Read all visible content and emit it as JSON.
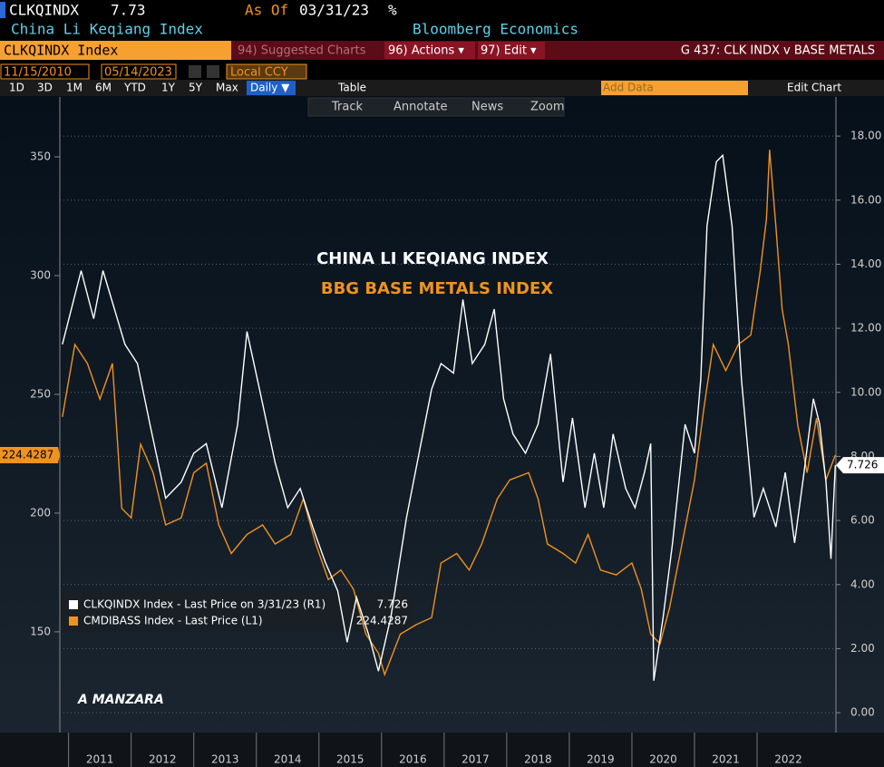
{
  "ui": {
    "ticker": "CLKQINDX",
    "last": "7.73",
    "as_of_label": "As Of",
    "as_of_date": "03/31/23",
    "pct": "%",
    "security_name": "China Li Keqiang Index",
    "source": "Bloomberg Economics",
    "security_box": "CLKQINDX Index",
    "menu_suggested": "94) Suggested Charts",
    "menu_actions": "96) Actions ▾",
    "menu_edit": "97) Edit ▾",
    "chart_code": "G 437: CLK INDX v BASE METALS",
    "start_date": "11/15/2010",
    "end_date": "05/14/2023",
    "currency": "Local CCY",
    "periods": [
      "1D",
      "3D",
      "1M",
      "6M",
      "YTD",
      "1Y",
      "5Y",
      "Max"
    ],
    "frequency": "Daily ▼",
    "table": "Table",
    "add_data": "Add Data",
    "edit_chart": "Edit Chart",
    "tools": [
      "Track",
      "Annotate",
      "News",
      "Zoom"
    ]
  },
  "chart_data": {
    "type": "line",
    "title": "CHINA LI KEQIANG INDEX",
    "subtitle": "BBG BASE METALS INDEX",
    "annotation": "A MANZARA",
    "xlim": [
      2010.86,
      2023.26
    ],
    "xticks": [
      2011,
      2012,
      2013,
      2014,
      2015,
      2016,
      2017,
      2018,
      2019,
      2020,
      2021,
      2022
    ],
    "ylim": [
      107.6,
      375.2
    ],
    "yticks": [
      150,
      200,
      250,
      300,
      350
    ],
    "y2lim": [
      -0.62,
      19.22
    ],
    "y2ticks": [
      {
        "value": 0,
        "label": "0.00"
      },
      {
        "value": 2,
        "label": "2.00"
      },
      {
        "value": 4,
        "label": "4.00"
      },
      {
        "value": 6,
        "label": "6.00"
      },
      {
        "value": 8,
        "label": "8.00"
      },
      {
        "value": 10,
        "label": "10.00"
      },
      {
        "value": 12,
        "label": "12.00"
      },
      {
        "value": 14,
        "label": "14.00"
      },
      {
        "value": 16,
        "label": "16.00"
      },
      {
        "value": 18,
        "label": "18.00"
      }
    ],
    "grid": true,
    "series": [
      {
        "name": "CLKQINDX Index - Last Price on 3/31/23 (R1)",
        "color": "#ffffff",
        "axis": "y2",
        "x": [
          2010.9,
          2011.2,
          2011.4,
          2011.55,
          2011.9,
          2012.1,
          2012.3,
          2012.55,
          2012.8,
          2013.0,
          2013.2,
          2013.45,
          2013.7,
          2013.85,
          2014.05,
          2014.3,
          2014.5,
          2014.7,
          2014.9,
          2015.1,
          2015.3,
          2015.45,
          2015.6,
          2015.8,
          2015.95,
          2016.15,
          2016.4,
          2016.6,
          2016.8,
          2016.95,
          2017.15,
          2017.3,
          2017.45,
          2017.65,
          2017.8,
          2017.95,
          2018.1,
          2018.3,
          2018.5,
          2018.7,
          2018.9,
          2019.05,
          2019.25,
          2019.4,
          2019.55,
          2019.7,
          2019.9,
          2020.05,
          2020.2,
          2020.3,
          2020.35,
          2020.5,
          2020.65,
          2020.85,
          2021.0,
          2021.1,
          2021.2,
          2021.35,
          2021.45,
          2021.6,
          2021.75,
          2021.95,
          2022.1,
          2022.3,
          2022.45,
          2022.6,
          2022.75,
          2022.9,
          2023.0,
          2023.1,
          2023.18,
          2023.25
        ],
        "values": [
          11.5,
          13.8,
          12.3,
          13.8,
          11.5,
          10.9,
          9.0,
          6.7,
          7.2,
          8.1,
          8.4,
          6.4,
          9.0,
          11.9,
          10.1,
          7.8,
          6.4,
          7.0,
          5.8,
          4.7,
          3.8,
          2.2,
          3.6,
          2.4,
          1.3,
          3.0,
          6.1,
          8.1,
          10.1,
          10.9,
          10.6,
          12.9,
          10.9,
          11.5,
          12.6,
          9.8,
          8.7,
          8.1,
          9.0,
          11.2,
          7.2,
          9.2,
          6.4,
          8.1,
          6.4,
          8.7,
          7.0,
          6.4,
          7.5,
          8.4,
          1.0,
          3.0,
          5.3,
          9.0,
          8.1,
          10.4,
          15.2,
          17.2,
          17.4,
          15.2,
          10.4,
          6.1,
          7.0,
          5.8,
          7.5,
          5.3,
          7.5,
          9.8,
          9.0,
          7.2,
          4.8,
          7.726
        ],
        "value_labels": [
          null,
          null,
          null,
          null,
          null,
          null,
          null,
          null,
          null,
          null,
          null,
          null,
          null,
          null,
          null,
          null,
          null,
          null,
          null,
          null,
          null,
          null,
          null,
          null,
          null,
          null,
          null,
          null,
          null,
          null,
          null,
          null,
          null,
          null,
          null,
          null,
          null,
          null,
          null,
          null,
          null,
          null,
          null,
          null,
          null,
          null,
          null,
          null,
          null,
          null,
          null,
          null,
          null,
          null,
          null,
          null,
          null,
          null,
          null,
          null,
          null,
          null,
          null,
          null,
          null,
          null,
          null,
          null,
          null,
          null,
          null,
          "7.726"
        ]
      },
      {
        "name": "CMDIBASS Index - Last Price (L1)",
        "color": "#f0921e",
        "axis": "y",
        "x": [
          2010.9,
          2011.1,
          2011.3,
          2011.5,
          2011.7,
          2011.85,
          2012.0,
          2012.15,
          2012.35,
          2012.55,
          2012.8,
          2013.0,
          2013.2,
          2013.4,
          2013.6,
          2013.85,
          2014.1,
          2014.3,
          2014.55,
          2014.75,
          2014.95,
          2015.15,
          2015.35,
          2015.55,
          2015.75,
          2015.95,
          2016.05,
          2016.3,
          2016.55,
          2016.8,
          2016.95,
          2017.2,
          2017.4,
          2017.6,
          2017.85,
          2018.05,
          2018.35,
          2018.5,
          2018.65,
          2018.9,
          2019.1,
          2019.3,
          2019.5,
          2019.75,
          2020.0,
          2020.15,
          2020.3,
          2020.45,
          2020.6,
          2020.8,
          2021.0,
          2021.15,
          2021.3,
          2021.5,
          2021.7,
          2021.9,
          2022.05,
          2022.15,
          2022.2,
          2022.3,
          2022.4,
          2022.5,
          2022.65,
          2022.8,
          2022.95,
          2023.1,
          2023.25
        ],
        "values": [
          240.5,
          271,
          263,
          248,
          263,
          202,
          198,
          229,
          217,
          195,
          198,
          217,
          221,
          195,
          183,
          191,
          195,
          187,
          191,
          206,
          187,
          172,
          176,
          168,
          149,
          141,
          132,
          149,
          153,
          156,
          179,
          183,
          176,
          187,
          206,
          214,
          217,
          206,
          187,
          183,
          179,
          191,
          176,
          174,
          179,
          168,
          149,
          145,
          160,
          187,
          214,
          244,
          271,
          260,
          271,
          275,
          302,
          324,
          353,
          321,
          286,
          271,
          237,
          217,
          240,
          214,
          224.4287
        ],
        "value_labels": [
          null,
          null,
          null,
          null,
          null,
          null,
          null,
          null,
          null,
          null,
          null,
          null,
          null,
          null,
          null,
          null,
          null,
          null,
          null,
          null,
          null,
          null,
          null,
          null,
          null,
          null,
          null,
          null,
          null,
          null,
          null,
          null,
          null,
          null,
          null,
          null,
          null,
          null,
          null,
          null,
          null,
          null,
          null,
          null,
          null,
          null,
          null,
          null,
          null,
          null,
          null,
          null,
          null,
          null,
          null,
          null,
          null,
          null,
          null,
          null,
          null,
          null,
          null,
          null,
          null,
          null,
          "224.4287"
        ]
      }
    ]
  }
}
